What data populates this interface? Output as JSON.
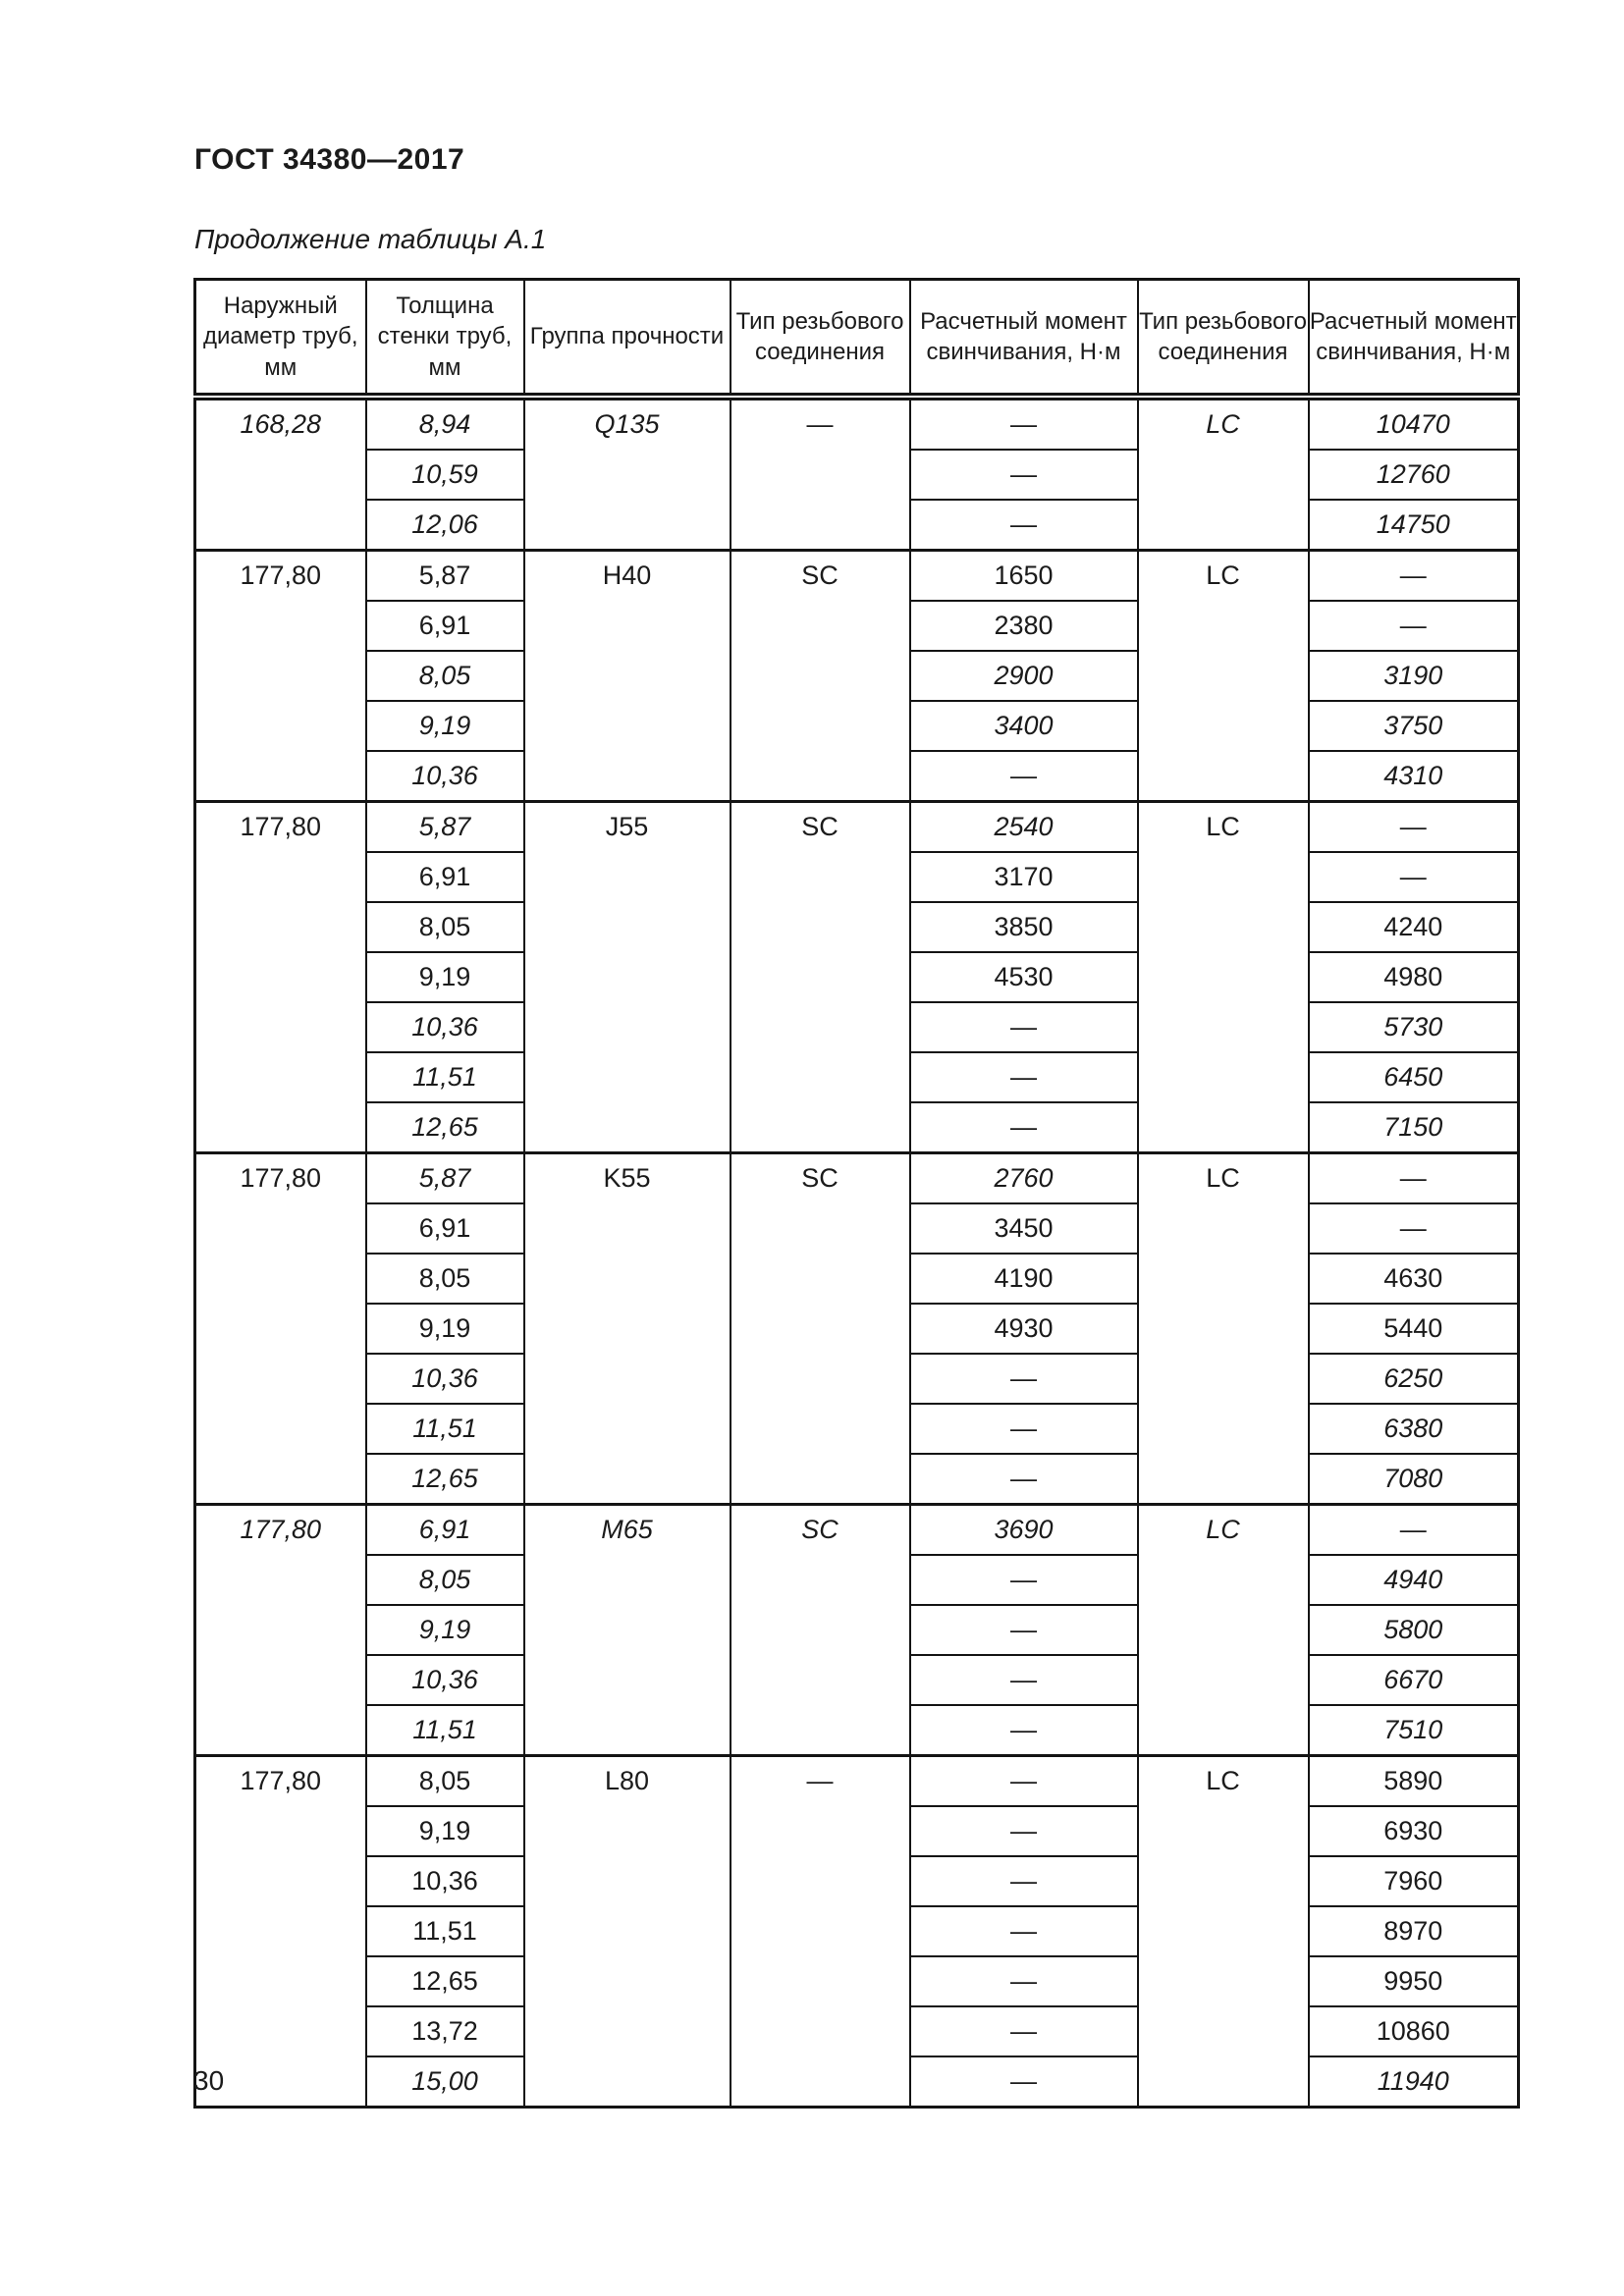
{
  "page": {
    "doc_title": "ГОСТ 34380—2017",
    "table_caption": "Продолжение таблицы А.1",
    "page_number": "30"
  },
  "table": {
    "headers": [
      "Наружный диаметр труб, мм",
      "Толщина стенки труб, мм",
      "Группа прочности",
      "Тип резьбового соединения",
      "Расчетный момент свинчивания, Н·м",
      "Тип резьбового соединения",
      "Расчетный момент свинчивания, Н·м"
    ],
    "groups": [
      {
        "diameter": {
          "text": "168,28",
          "italic": true
        },
        "strength_group": {
          "text": "Q135",
          "italic": true
        },
        "type1": {
          "text": "—",
          "italic": false
        },
        "type2": {
          "text": "LC",
          "italic": true
        },
        "rows": [
          {
            "thickness": {
              "text": "8,94",
              "italic": true
            },
            "torque1": {
              "text": "—",
              "italic": false
            },
            "torque2": {
              "text": "10470",
              "italic": true
            }
          },
          {
            "thickness": {
              "text": "10,59",
              "italic": true
            },
            "torque1": {
              "text": "—",
              "italic": false
            },
            "torque2": {
              "text": "12760",
              "italic": true
            }
          },
          {
            "thickness": {
              "text": "12,06",
              "italic": true
            },
            "torque1": {
              "text": "—",
              "italic": false
            },
            "torque2": {
              "text": "14750",
              "italic": true
            }
          }
        ]
      },
      {
        "diameter": {
          "text": "177,80",
          "italic": false
        },
        "strength_group": {
          "text": "H40",
          "italic": false
        },
        "type1": {
          "text": "SC",
          "italic": false
        },
        "type2": {
          "text": "LC",
          "italic": false
        },
        "rows": [
          {
            "thickness": {
              "text": "5,87",
              "italic": false
            },
            "torque1": {
              "text": "1650",
              "italic": false
            },
            "torque2": {
              "text": "—",
              "italic": false
            }
          },
          {
            "thickness": {
              "text": "6,91",
              "italic": false
            },
            "torque1": {
              "text": "2380",
              "italic": false
            },
            "torque2": {
              "text": "—",
              "italic": false
            }
          },
          {
            "thickness": {
              "text": "8,05",
              "italic": true
            },
            "torque1": {
              "text": "2900",
              "italic": true
            },
            "torque2": {
              "text": "3190",
              "italic": true
            }
          },
          {
            "thickness": {
              "text": "9,19",
              "italic": true
            },
            "torque1": {
              "text": "3400",
              "italic": true
            },
            "torque2": {
              "text": "3750",
              "italic": true
            }
          },
          {
            "thickness": {
              "text": "10,36",
              "italic": true
            },
            "torque1": {
              "text": "—",
              "italic": false
            },
            "torque2": {
              "text": "4310",
              "italic": true
            }
          }
        ]
      },
      {
        "diameter": {
          "text": "177,80",
          "italic": false
        },
        "strength_group": {
          "text": "J55",
          "italic": false
        },
        "type1": {
          "text": "SC",
          "italic": false
        },
        "type2": {
          "text": "LC",
          "italic": false
        },
        "rows": [
          {
            "thickness": {
              "text": "5,87",
              "italic": true
            },
            "torque1": {
              "text": "2540",
              "italic": true
            },
            "torque2": {
              "text": "—",
              "italic": false
            }
          },
          {
            "thickness": {
              "text": "6,91",
              "italic": false
            },
            "torque1": {
              "text": "3170",
              "italic": false
            },
            "torque2": {
              "text": "—",
              "italic": false
            }
          },
          {
            "thickness": {
              "text": "8,05",
              "italic": false
            },
            "torque1": {
              "text": "3850",
              "italic": false
            },
            "torque2": {
              "text": "4240",
              "italic": false
            }
          },
          {
            "thickness": {
              "text": "9,19",
              "italic": false
            },
            "torque1": {
              "text": "4530",
              "italic": false
            },
            "torque2": {
              "text": "4980",
              "italic": false
            }
          },
          {
            "thickness": {
              "text": "10,36",
              "italic": true
            },
            "torque1": {
              "text": "—",
              "italic": false
            },
            "torque2": {
              "text": "5730",
              "italic": true
            }
          },
          {
            "thickness": {
              "text": "11,51",
              "italic": true
            },
            "torque1": {
              "text": "—",
              "italic": false
            },
            "torque2": {
              "text": "6450",
              "italic": true
            }
          },
          {
            "thickness": {
              "text": "12,65",
              "italic": true
            },
            "torque1": {
              "text": "—",
              "italic": false
            },
            "torque2": {
              "text": "7150",
              "italic": true
            }
          }
        ]
      },
      {
        "diameter": {
          "text": "177,80",
          "italic": false
        },
        "strength_group": {
          "text": "K55",
          "italic": false
        },
        "type1": {
          "text": "SC",
          "italic": false
        },
        "type2": {
          "text": "LC",
          "italic": false
        },
        "rows": [
          {
            "thickness": {
              "text": "5,87",
              "italic": true
            },
            "torque1": {
              "text": "2760",
              "italic": true
            },
            "torque2": {
              "text": "—",
              "italic": false
            }
          },
          {
            "thickness": {
              "text": "6,91",
              "italic": false
            },
            "torque1": {
              "text": "3450",
              "italic": false
            },
            "torque2": {
              "text": "—",
              "italic": false
            }
          },
          {
            "thickness": {
              "text": "8,05",
              "italic": false
            },
            "torque1": {
              "text": "4190",
              "italic": false
            },
            "torque2": {
              "text": "4630",
              "italic": false
            }
          },
          {
            "thickness": {
              "text": "9,19",
              "italic": false
            },
            "torque1": {
              "text": "4930",
              "italic": false
            },
            "torque2": {
              "text": "5440",
              "italic": false
            }
          },
          {
            "thickness": {
              "text": "10,36",
              "italic": true
            },
            "torque1": {
              "text": "—",
              "italic": false
            },
            "torque2": {
              "text": "6250",
              "italic": true
            }
          },
          {
            "thickness": {
              "text": "11,51",
              "italic": true
            },
            "torque1": {
              "text": "—",
              "italic": false
            },
            "torque2": {
              "text": "6380",
              "italic": true
            }
          },
          {
            "thickness": {
              "text": "12,65",
              "italic": true
            },
            "torque1": {
              "text": "—",
              "italic": false
            },
            "torque2": {
              "text": "7080",
              "italic": true
            }
          }
        ]
      },
      {
        "diameter": {
          "text": "177,80",
          "italic": true
        },
        "strength_group": {
          "text": "M65",
          "italic": true
        },
        "type1": {
          "text": "SC",
          "italic": true
        },
        "type2": {
          "text": "LC",
          "italic": true
        },
        "rows": [
          {
            "thickness": {
              "text": "6,91",
              "italic": true
            },
            "torque1": {
              "text": "3690",
              "italic": true
            },
            "torque2": {
              "text": "—",
              "italic": false
            }
          },
          {
            "thickness": {
              "text": "8,05",
              "italic": true
            },
            "torque1": {
              "text": "—",
              "italic": false
            },
            "torque2": {
              "text": "4940",
              "italic": true
            }
          },
          {
            "thickness": {
              "text": "9,19",
              "italic": true
            },
            "torque1": {
              "text": "—",
              "italic": false
            },
            "torque2": {
              "text": "5800",
              "italic": true
            }
          },
          {
            "thickness": {
              "text": "10,36",
              "italic": true
            },
            "torque1": {
              "text": "—",
              "italic": false
            },
            "torque2": {
              "text": "6670",
              "italic": true
            }
          },
          {
            "thickness": {
              "text": "11,51",
              "italic": true
            },
            "torque1": {
              "text": "—",
              "italic": false
            },
            "torque2": {
              "text": "7510",
              "italic": true
            }
          }
        ]
      },
      {
        "diameter": {
          "text": "177,80",
          "italic": false
        },
        "strength_group": {
          "text": "L80",
          "italic": false
        },
        "type1": {
          "text": "—",
          "italic": false
        },
        "type2": {
          "text": "LC",
          "italic": false
        },
        "rows": [
          {
            "thickness": {
              "text": "8,05",
              "italic": false
            },
            "torque1": {
              "text": "—",
              "italic": false
            },
            "torque2": {
              "text": "5890",
              "italic": false
            }
          },
          {
            "thickness": {
              "text": "9,19",
              "italic": false
            },
            "torque1": {
              "text": "—",
              "italic": false
            },
            "torque2": {
              "text": "6930",
              "italic": false
            }
          },
          {
            "thickness": {
              "text": "10,36",
              "italic": false
            },
            "torque1": {
              "text": "—",
              "italic": false
            },
            "torque2": {
              "text": "7960",
              "italic": false
            }
          },
          {
            "thickness": {
              "text": "11,51",
              "italic": false
            },
            "torque1": {
              "text": "—",
              "italic": false
            },
            "torque2": {
              "text": "8970",
              "italic": false
            }
          },
          {
            "thickness": {
              "text": "12,65",
              "italic": false
            },
            "torque1": {
              "text": "—",
              "italic": false
            },
            "torque2": {
              "text": "9950",
              "italic": false
            }
          },
          {
            "thickness": {
              "text": "13,72",
              "italic": false
            },
            "torque1": {
              "text": "—",
              "italic": false
            },
            "torque2": {
              "text": "10860",
              "italic": false
            }
          },
          {
            "thickness": {
              "text": "15,00",
              "italic": true
            },
            "torque1": {
              "text": "—",
              "italic": false
            },
            "torque2": {
              "text": "11940",
              "italic": true
            }
          }
        ]
      }
    ]
  }
}
